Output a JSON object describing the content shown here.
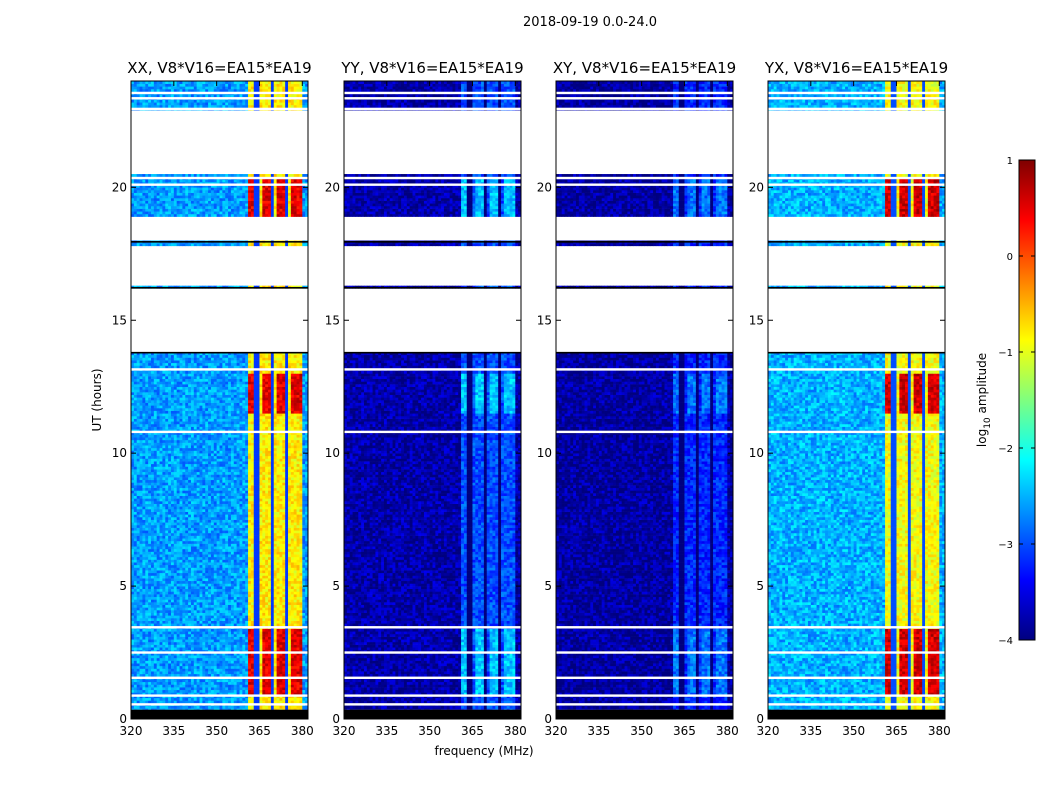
{
  "figure_title": "2018-09-19 0.0-24.0",
  "colors": {
    "jet": [
      "#00007f",
      "#0000ff",
      "#007fff",
      "#00ffff",
      "#7fff7f",
      "#ffff00",
      "#ff7f00",
      "#ff0000",
      "#7f0000"
    ]
  },
  "chart_data": {
    "type": "heatmap",
    "xlabel": "frequency (MHz)",
    "ylabel": "UT (hours)",
    "xlim": [
      320,
      382
    ],
    "ylim": [
      0,
      24
    ],
    "x_ticks": [
      320,
      335,
      350,
      365,
      380
    ],
    "y_ticks": [
      0,
      5,
      10,
      15,
      20
    ],
    "colorbar": {
      "label": "log10 amplitude",
      "label_base": "log",
      "label_sub": "10",
      "label_rest": " amplitude",
      "range": [
        -4,
        1
      ],
      "ticks": [
        1,
        0,
        -1,
        -2,
        -3,
        -4
      ],
      "tick_labels": [
        "1",
        "0",
        "−1",
        "−2",
        "−3",
        "−4"
      ]
    },
    "panels": [
      {
        "name": "XX",
        "title": "XX, V8*V16=EA15*EA19",
        "band_level": -0.8,
        "base_level": -2.6,
        "hot_level": 0.5
      },
      {
        "name": "YY",
        "title": "YY, V8*V16=EA15*EA19",
        "band_level": -3.0,
        "base_level": -3.8,
        "hot_level": -2.4
      },
      {
        "name": "XY",
        "title": "XY, V8*V16=EA15*EA19",
        "band_level": -3.2,
        "base_level": -3.85,
        "hot_level": -2.8
      },
      {
        "name": "YX",
        "title": "YX, V8*V16=EA15*EA19",
        "band_level": -0.9,
        "base_level": -2.5,
        "hot_level": 0.6
      }
    ],
    "band_mhz": [
      361,
      380
    ],
    "channel_gaps_mhz": [
      364,
      369.5,
      374.5
    ],
    "blank_ut_ranges": [
      [
        13.8,
        16.2
      ],
      [
        16.3,
        17.8
      ],
      [
        18.0,
        18.9
      ],
      [
        20.5,
        22.9
      ]
    ],
    "flag_lines_ut": [
      0.3,
      0.55,
      0.88,
      1.55,
      2.5,
      3.45,
      10.8,
      13.15,
      22.95,
      23.35,
      23.55,
      20.1,
      20.35
    ]
  }
}
